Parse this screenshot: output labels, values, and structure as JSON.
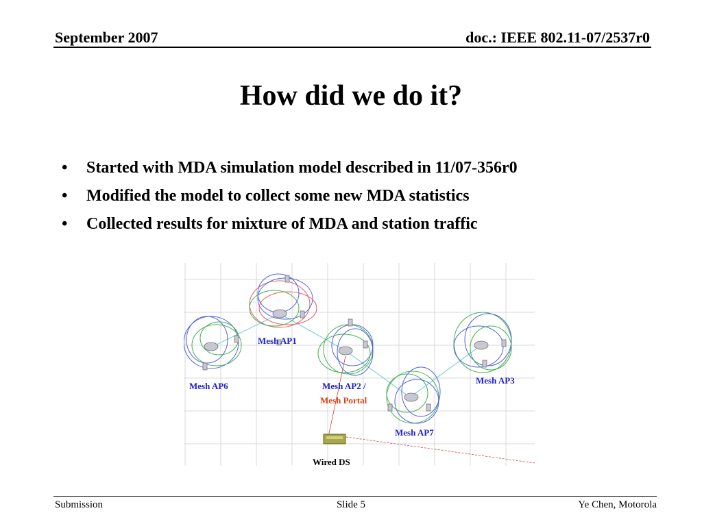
{
  "header": {
    "date": "September 2007",
    "doc": "doc.: IEEE 802.11-07/2537r0"
  },
  "slide": {
    "title": "How did we do it?",
    "bullets": [
      "Started with MDA simulation model described in 11/07-356r0",
      "Modified the model to collect some new MDA statistics",
      "Collected results for mixture of MDA and station traffic"
    ]
  },
  "figure": {
    "labels": {
      "ap1": "Mesh AP1",
      "ap2_line1": "Mesh AP2 /",
      "ap2_line2": "Mesh Portal",
      "ap3": "Mesh AP3",
      "ap6": "Mesh AP6",
      "ap7": "Mesh AP7",
      "wired": "Wired DS"
    },
    "colors": {
      "label_blue": "#2020cc",
      "portal_orange": "#e04010"
    }
  },
  "footer": {
    "left": "Submission",
    "center": "Slide 5",
    "right": "Ye Chen, Motorola"
  }
}
